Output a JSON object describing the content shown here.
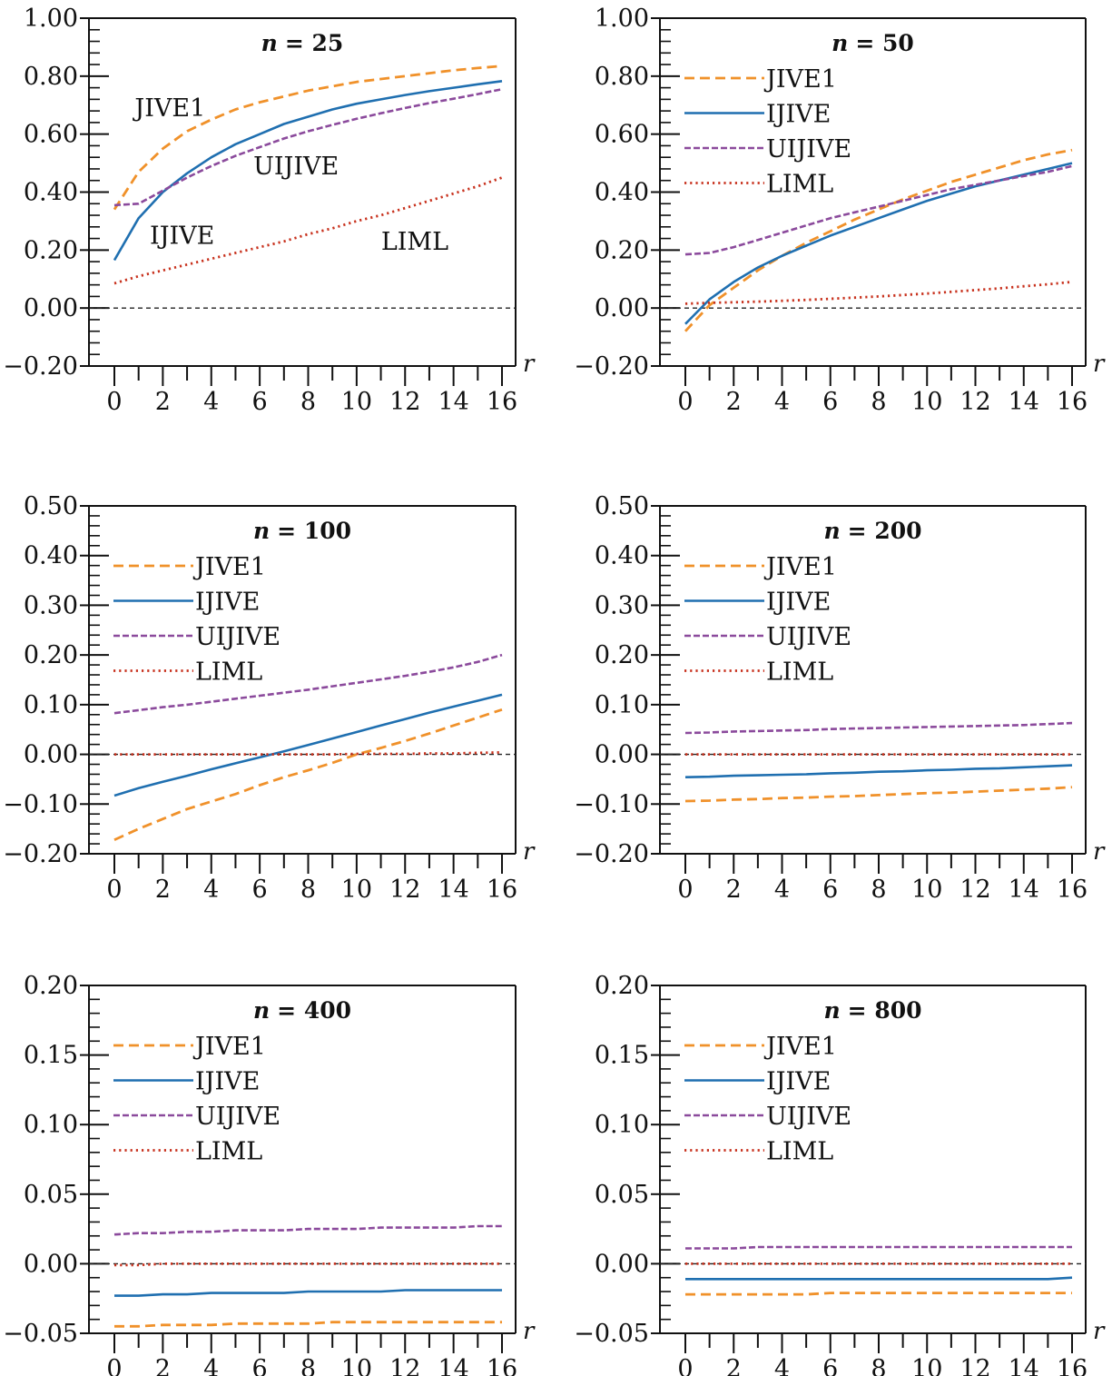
{
  "colors": {
    "JIVE1": "#f0912a",
    "IJIVE": "#1f6fb0",
    "UIJIVE": "#8b4a9c",
    "LIML": "#c8321e",
    "axis": "#111111"
  },
  "chart_data": [
    {
      "type": "line",
      "title": "n = 25",
      "title_var": "n",
      "title_value": "= 25",
      "xlabel": "r",
      "ylabel": "",
      "xlim": [
        0,
        16
      ],
      "ylim": [
        -0.2,
        1.0
      ],
      "xticks": [
        "0",
        "2",
        "4",
        "6",
        "8",
        "10",
        "12",
        "14",
        "16"
      ],
      "yticks": [
        "1.00",
        "0.80",
        "0.60",
        "0.40",
        "0.20",
        "0.00",
        "−0.20"
      ],
      "ytick_values": [
        1.0,
        0.8,
        0.6,
        0.4,
        0.2,
        0.0,
        -0.2
      ],
      "zero_line": true,
      "legend": "inline",
      "inline_labels": [
        {
          "series": "JIVE1",
          "text": "JIVE1",
          "x": 2.3,
          "y": 0.69
        },
        {
          "series": "UIJIVE",
          "text": "UIJIVE",
          "x": 7.5,
          "y": 0.49
        },
        {
          "series": "IJIVE",
          "text": "IJIVE",
          "x": 2.8,
          "y": 0.25
        },
        {
          "series": "LIML",
          "text": "LIML",
          "x": 12.4,
          "y": 0.23
        }
      ],
      "x": [
        0,
        1,
        2,
        3,
        4,
        5,
        6,
        7,
        8,
        9,
        10,
        11,
        12,
        13,
        14,
        15,
        16
      ],
      "series": [
        {
          "name": "JIVE1",
          "style": "dashed",
          "values": [
            0.34,
            0.47,
            0.55,
            0.61,
            0.65,
            0.685,
            0.71,
            0.73,
            0.75,
            0.765,
            0.78,
            0.79,
            0.8,
            0.81,
            0.82,
            0.828,
            0.835
          ]
        },
        {
          "name": "IJIVE",
          "style": "solid",
          "values": [
            0.165,
            0.31,
            0.4,
            0.465,
            0.52,
            0.565,
            0.6,
            0.635,
            0.66,
            0.685,
            0.705,
            0.72,
            0.735,
            0.748,
            0.76,
            0.772,
            0.783
          ]
        },
        {
          "name": "UIJIVE",
          "style": "dashed-fine",
          "values": [
            0.355,
            0.36,
            0.405,
            0.45,
            0.49,
            0.525,
            0.555,
            0.585,
            0.61,
            0.632,
            0.653,
            0.672,
            0.69,
            0.707,
            0.722,
            0.738,
            0.755
          ]
        },
        {
          "name": "LIML",
          "style": "dotted",
          "values": [
            0.085,
            0.11,
            0.13,
            0.15,
            0.17,
            0.19,
            0.21,
            0.23,
            0.255,
            0.275,
            0.3,
            0.32,
            0.345,
            0.37,
            0.395,
            0.42,
            0.45
          ]
        }
      ]
    },
    {
      "type": "line",
      "title": "n = 50",
      "title_var": "n",
      "title_value": "= 50",
      "xlabel": "r",
      "ylabel": "",
      "xlim": [
        0,
        16
      ],
      "ylim": [
        -0.2,
        1.0
      ],
      "xticks": [
        "0",
        "2",
        "4",
        "6",
        "8",
        "10",
        "12",
        "14",
        "16"
      ],
      "yticks": [
        "1.00",
        "0.80",
        "0.60",
        "0.40",
        "0.20",
        "0.00",
        "−0.20"
      ],
      "ytick_values": [
        1.0,
        0.8,
        0.6,
        0.4,
        0.2,
        0.0,
        -0.2
      ],
      "zero_line": true,
      "legend": "top-left",
      "x": [
        0,
        1,
        2,
        3,
        4,
        5,
        6,
        7,
        8,
        9,
        10,
        11,
        12,
        13,
        14,
        15,
        16
      ],
      "series": [
        {
          "name": "JIVE1",
          "style": "dashed",
          "values": [
            -0.08,
            0.01,
            0.07,
            0.13,
            0.18,
            0.225,
            0.265,
            0.305,
            0.34,
            0.375,
            0.405,
            0.435,
            0.46,
            0.485,
            0.51,
            0.53,
            0.545
          ]
        },
        {
          "name": "IJIVE",
          "style": "solid",
          "values": [
            -0.055,
            0.03,
            0.09,
            0.14,
            0.18,
            0.215,
            0.25,
            0.28,
            0.31,
            0.34,
            0.37,
            0.395,
            0.42,
            0.44,
            0.46,
            0.48,
            0.5
          ]
        },
        {
          "name": "UIJIVE",
          "style": "dashed-fine",
          "values": [
            0.185,
            0.19,
            0.21,
            0.235,
            0.26,
            0.285,
            0.31,
            0.33,
            0.35,
            0.37,
            0.39,
            0.41,
            0.425,
            0.44,
            0.455,
            0.47,
            0.49
          ]
        },
        {
          "name": "LIML",
          "style": "dotted",
          "values": [
            0.015,
            0.018,
            0.02,
            0.022,
            0.025,
            0.028,
            0.032,
            0.036,
            0.04,
            0.045,
            0.05,
            0.056,
            0.062,
            0.068,
            0.075,
            0.082,
            0.09
          ]
        }
      ]
    },
    {
      "type": "line",
      "title": "n = 100",
      "title_var": "n",
      "title_value": "= 100",
      "xlabel": "r",
      "ylabel": "",
      "xlim": [
        0,
        16
      ],
      "ylim": [
        -0.2,
        0.5
      ],
      "xticks": [
        "0",
        "2",
        "4",
        "6",
        "8",
        "10",
        "12",
        "14",
        "16"
      ],
      "yticks": [
        "0.50",
        "0.40",
        "0.30",
        "0.20",
        "0.10",
        "0.00",
        "−0.10",
        "−0.20"
      ],
      "ytick_values": [
        0.5,
        0.4,
        0.3,
        0.2,
        0.1,
        0.0,
        -0.1,
        -0.2
      ],
      "zero_line": true,
      "legend": "top-left",
      "x": [
        0,
        1,
        2,
        3,
        4,
        5,
        6,
        7,
        8,
        9,
        10,
        11,
        12,
        13,
        14,
        15,
        16
      ],
      "series": [
        {
          "name": "JIVE1",
          "style": "dashed",
          "values": [
            -0.172,
            -0.15,
            -0.13,
            -0.11,
            -0.095,
            -0.08,
            -0.062,
            -0.046,
            -0.032,
            -0.017,
            0.0,
            0.013,
            0.027,
            0.042,
            0.058,
            0.074,
            0.09
          ]
        },
        {
          "name": "IJIVE",
          "style": "solid",
          "values": [
            -0.083,
            -0.068,
            -0.055,
            -0.043,
            -0.03,
            -0.018,
            -0.006,
            0.006,
            0.019,
            0.032,
            0.045,
            0.058,
            0.071,
            0.084,
            0.096,
            0.108,
            0.12
          ]
        },
        {
          "name": "UIJIVE",
          "style": "dashed-fine",
          "values": [
            0.083,
            0.089,
            0.095,
            0.1,
            0.106,
            0.112,
            0.118,
            0.124,
            0.13,
            0.137,
            0.144,
            0.151,
            0.158,
            0.166,
            0.175,
            0.186,
            0.2
          ]
        },
        {
          "name": "LIML",
          "style": "dotted",
          "values": [
            0.0,
            0.0,
            0.0,
            0.0,
            0.0,
            0.0,
            0.0,
            0.0,
            0.0,
            0.0,
            0.001,
            0.001,
            0.001,
            0.002,
            0.002,
            0.003,
            0.004
          ]
        }
      ]
    },
    {
      "type": "line",
      "title": "n = 200",
      "title_var": "n",
      "title_value": "= 200",
      "xlabel": "r",
      "ylabel": "",
      "xlim": [
        0,
        16
      ],
      "ylim": [
        -0.2,
        0.5
      ],
      "xticks": [
        "0",
        "2",
        "4",
        "6",
        "8",
        "10",
        "12",
        "14",
        "16"
      ],
      "yticks": [
        "0.50",
        "0.40",
        "0.30",
        "0.20",
        "0.10",
        "0.00",
        "−0.10",
        "−0.20"
      ],
      "ytick_values": [
        0.5,
        0.4,
        0.3,
        0.2,
        0.1,
        0.0,
        -0.1,
        -0.2
      ],
      "zero_line": true,
      "legend": "top-left",
      "x": [
        0,
        1,
        2,
        3,
        4,
        5,
        6,
        7,
        8,
        9,
        10,
        11,
        12,
        13,
        14,
        15,
        16
      ],
      "series": [
        {
          "name": "JIVE1",
          "style": "dashed",
          "values": [
            -0.094,
            -0.093,
            -0.091,
            -0.09,
            -0.088,
            -0.087,
            -0.085,
            -0.084,
            -0.082,
            -0.08,
            -0.078,
            -0.077,
            -0.075,
            -0.073,
            -0.071,
            -0.069,
            -0.066
          ]
        },
        {
          "name": "IJIVE",
          "style": "solid",
          "values": [
            -0.046,
            -0.045,
            -0.043,
            -0.042,
            -0.041,
            -0.04,
            -0.038,
            -0.037,
            -0.035,
            -0.034,
            -0.032,
            -0.031,
            -0.029,
            -0.028,
            -0.026,
            -0.024,
            -0.022
          ]
        },
        {
          "name": "UIJIVE",
          "style": "dashed-fine",
          "values": [
            0.043,
            0.044,
            0.046,
            0.047,
            0.048,
            0.049,
            0.051,
            0.052,
            0.053,
            0.054,
            0.055,
            0.056,
            0.057,
            0.058,
            0.059,
            0.061,
            0.063
          ]
        },
        {
          "name": "LIML",
          "style": "dotted",
          "values": [
            0.0,
            0.0,
            0.0,
            0.0,
            0.0,
            0.0,
            0.0,
            0.0,
            0.0,
            0.0,
            0.0,
            0.0,
            0.0,
            0.0,
            0.0,
            0.0,
            0.0
          ]
        }
      ]
    },
    {
      "type": "line",
      "title": "n = 400",
      "title_var": "n",
      "title_value": "= 400",
      "xlabel": "r",
      "ylabel": "",
      "xlim": [
        0,
        16
      ],
      "ylim": [
        -0.05,
        0.2
      ],
      "xticks": [
        "0",
        "2",
        "4",
        "6",
        "8",
        "10",
        "12",
        "14",
        "16"
      ],
      "yticks": [
        "0.20",
        "0.15",
        "0.10",
        "0.05",
        "0.00",
        "−0.05"
      ],
      "ytick_values": [
        0.2,
        0.15,
        0.1,
        0.05,
        0.0,
        -0.05
      ],
      "zero_line": true,
      "legend": "top-left",
      "x": [
        0,
        1,
        2,
        3,
        4,
        5,
        6,
        7,
        8,
        9,
        10,
        11,
        12,
        13,
        14,
        15,
        16
      ],
      "series": [
        {
          "name": "JIVE1",
          "style": "dashed",
          "values": [
            -0.045,
            -0.045,
            -0.044,
            -0.044,
            -0.044,
            -0.043,
            -0.043,
            -0.043,
            -0.043,
            -0.042,
            -0.042,
            -0.042,
            -0.042,
            -0.042,
            -0.042,
            -0.042,
            -0.042
          ]
        },
        {
          "name": "IJIVE",
          "style": "solid",
          "values": [
            -0.023,
            -0.023,
            -0.022,
            -0.022,
            -0.021,
            -0.021,
            -0.021,
            -0.021,
            -0.02,
            -0.02,
            -0.02,
            -0.02,
            -0.019,
            -0.019,
            -0.019,
            -0.019,
            -0.019
          ]
        },
        {
          "name": "UIJIVE",
          "style": "dashed-fine",
          "values": [
            0.021,
            0.022,
            0.022,
            0.023,
            0.023,
            0.024,
            0.024,
            0.024,
            0.025,
            0.025,
            0.025,
            0.026,
            0.026,
            0.026,
            0.026,
            0.027,
            0.027
          ]
        },
        {
          "name": "LIML",
          "style": "dotted",
          "values": [
            -0.001,
            -0.001,
            0.0,
            0.0,
            0.0,
            0.0,
            0.0,
            0.0,
            0.0,
            0.0,
            0.0,
            0.0,
            0.0,
            0.0,
            0.0,
            0.0,
            0.0
          ]
        }
      ]
    },
    {
      "type": "line",
      "title": "n = 800",
      "title_var": "n",
      "title_value": "= 800",
      "xlabel": "r",
      "ylabel": "",
      "xlim": [
        0,
        16
      ],
      "ylim": [
        -0.05,
        0.2
      ],
      "xticks": [
        "0",
        "2",
        "4",
        "6",
        "8",
        "10",
        "12",
        "14",
        "16"
      ],
      "yticks": [
        "0.20",
        "0.15",
        "0.10",
        "0.05",
        "0.00",
        "−0.05"
      ],
      "ytick_values": [
        0.2,
        0.15,
        0.1,
        0.05,
        0.0,
        -0.05
      ],
      "zero_line": true,
      "legend": "top-left",
      "x": [
        0,
        1,
        2,
        3,
        4,
        5,
        6,
        7,
        8,
        9,
        10,
        11,
        12,
        13,
        14,
        15,
        16
      ],
      "series": [
        {
          "name": "JIVE1",
          "style": "dashed",
          "values": [
            -0.022,
            -0.022,
            -0.022,
            -0.022,
            -0.022,
            -0.022,
            -0.021,
            -0.021,
            -0.021,
            -0.021,
            -0.021,
            -0.021,
            -0.021,
            -0.021,
            -0.021,
            -0.021,
            -0.021
          ]
        },
        {
          "name": "IJIVE",
          "style": "solid",
          "values": [
            -0.011,
            -0.011,
            -0.011,
            -0.011,
            -0.011,
            -0.011,
            -0.011,
            -0.011,
            -0.011,
            -0.011,
            -0.011,
            -0.011,
            -0.011,
            -0.011,
            -0.011,
            -0.011,
            -0.01
          ]
        },
        {
          "name": "UIJIVE",
          "style": "dashed-fine",
          "values": [
            0.011,
            0.011,
            0.011,
            0.012,
            0.012,
            0.012,
            0.012,
            0.012,
            0.012,
            0.012,
            0.012,
            0.012,
            0.012,
            0.012,
            0.012,
            0.012,
            0.012
          ]
        },
        {
          "name": "LIML",
          "style": "dotted",
          "values": [
            0.0,
            0.0,
            0.0,
            0.0,
            0.0,
            0.0,
            0.0,
            0.0,
            0.0,
            0.0,
            0.0,
            0.0,
            0.0,
            0.0,
            0.0,
            0.0,
            0.0
          ]
        }
      ]
    }
  ]
}
